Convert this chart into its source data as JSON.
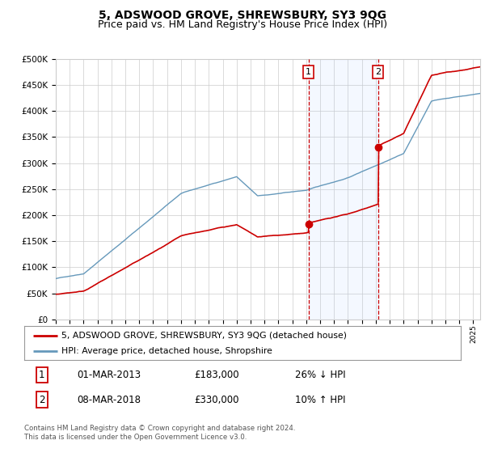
{
  "title": "5, ADSWOOD GROVE, SHREWSBURY, SY3 9QG",
  "subtitle": "Price paid vs. HM Land Registry's House Price Index (HPI)",
  "legend_label_red": "5, ADSWOOD GROVE, SHREWSBURY, SY3 9QG (detached house)",
  "legend_label_blue": "HPI: Average price, detached house, Shropshire",
  "footnote": "Contains HM Land Registry data © Crown copyright and database right 2024.\nThis data is licensed under the Open Government Licence v3.0.",
  "marker1_date": "01-MAR-2013",
  "marker1_price": "£183,000",
  "marker1_hpi": "26% ↓ HPI",
  "marker2_date": "08-MAR-2018",
  "marker2_price": "£330,000",
  "marker2_hpi": "10% ↑ HPI",
  "marker1_x": 2013.17,
  "marker1_y": 183000,
  "marker2_x": 2018.17,
  "marker2_y": 330000,
  "red_color": "#cc0000",
  "blue_color": "#6699bb",
  "blue_fill_color": "#ddeeff",
  "background_color": "#ffffff",
  "grid_color": "#cccccc",
  "ylim": [
    0,
    500000
  ],
  "xlim": [
    1995,
    2025.5
  ],
  "title_fontsize": 10,
  "subtitle_fontsize": 9
}
